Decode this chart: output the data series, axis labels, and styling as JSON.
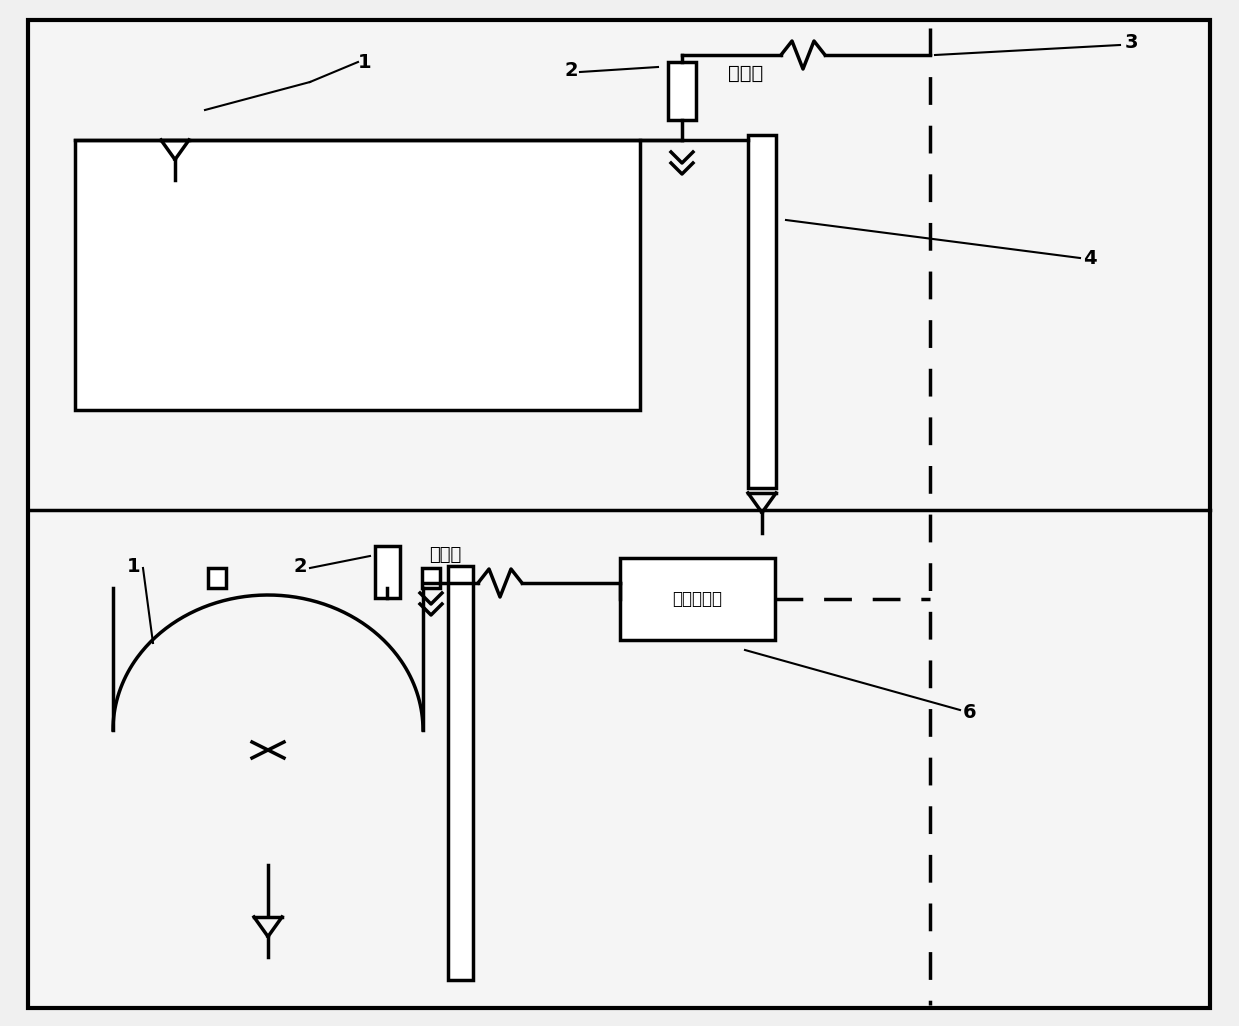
{
  "lw": 2.5,
  "lc": "#000000",
  "bg": "#f0f0f0",
  "label_valve": "呼吸阀",
  "label_device": "除酸雾装置",
  "fig_w": 12.39,
  "fig_h": 10.26,
  "dpi": 100
}
